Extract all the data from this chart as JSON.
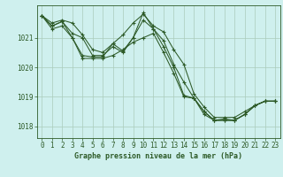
{
  "title": "Graphe pression niveau de la mer (hPa)",
  "bg_color": "#cff0ee",
  "grid_color": "#aaccbb",
  "line_color": "#2d5a27",
  "xlim": [
    -0.5,
    23.5
  ],
  "ylim": [
    1017.6,
    1022.1
  ],
  "yticks": [
    1018,
    1019,
    1020,
    1021
  ],
  "xticks": [
    0,
    1,
    2,
    3,
    4,
    5,
    6,
    7,
    8,
    9,
    10,
    11,
    12,
    13,
    14,
    15,
    16,
    17,
    18,
    19,
    20,
    21,
    22,
    23
  ],
  "series": [
    [
      1021.75,
      1021.5,
      1021.6,
      1021.5,
      1021.1,
      1020.6,
      1020.5,
      1020.8,
      1021.1,
      1021.5,
      1021.8,
      1021.4,
      1021.2,
      1020.6,
      1020.1,
      1019.1,
      1018.65,
      1018.3,
      1018.3,
      1018.3,
      1018.5,
      1018.7,
      1018.85,
      1018.85
    ],
    [
      1021.75,
      1021.4,
      1021.55,
      1021.15,
      1021.0,
      1020.4,
      1020.4,
      1020.7,
      1020.5,
      1021.0,
      1021.6,
      1021.3,
      1020.9,
      1020.1,
      1019.5,
      1018.95,
      1018.5,
      1018.2,
      1018.25,
      1018.2,
      1018.4,
      1018.7,
      1018.85,
      1018.85
    ],
    [
      1021.75,
      1021.4,
      1021.55,
      1021.0,
      1020.4,
      1020.35,
      1020.35,
      1020.8,
      1020.55,
      1021.0,
      1021.85,
      1021.3,
      1020.7,
      1020.0,
      1019.05,
      1018.95,
      1018.5,
      1018.2,
      1018.2,
      1018.2,
      1018.4,
      1018.7,
      1018.85,
      1018.85
    ],
    [
      1021.75,
      1021.3,
      1021.4,
      1021.0,
      1020.3,
      1020.3,
      1020.3,
      1020.4,
      1020.6,
      1020.85,
      1021.0,
      1021.15,
      1020.5,
      1019.8,
      1019.0,
      1018.95,
      1018.4,
      1018.2,
      1018.2,
      1018.2,
      1018.4,
      1018.7,
      1018.85,
      1018.85
    ]
  ]
}
